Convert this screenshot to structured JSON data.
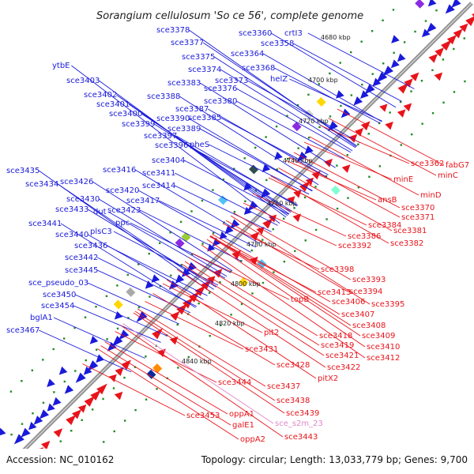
{
  "title": "Sorangium cellulosum 'So ce 56', complete genome",
  "accession": "Accession: NC_010162",
  "summary": "Topology: circular; Length: 13,033,779 bp; Genes: 9,700",
  "colors": {
    "forward": "#1a1adb",
    "reverse": "#e8141b",
    "pseudo": "#e087c9",
    "backbone": "#8c8c8c",
    "tick": "#228b22"
  },
  "kbp_ticks": [
    "4680 kbp",
    "4700 kbp",
    "4720 kbp",
    "4740 kbp",
    "4760 kbp",
    "4780 kbp",
    "4800 kbp",
    "4820 kbp",
    "4840 kbp"
  ],
  "forward_labels": [
    "crtI3",
    "sce3360",
    "sce3358",
    "sce3378",
    "sce3364",
    "sce3377",
    "sce3375",
    "sce3368",
    "sce3374",
    "helZ",
    "sce3373",
    "ytbE",
    "sce3383",
    "sce3376",
    "sce3403",
    "sce3380",
    "sce3388",
    "sce3402",
    "sce3401",
    "sce3387",
    "sce3385",
    "sce3400",
    "sce3390",
    "sce3399",
    "sce3389",
    "sce3397",
    "pheS",
    "sce3396",
    "sce3404",
    "sce3416",
    "sce3411",
    "sce3435",
    "sce3426",
    "sce3414",
    "sce3434",
    "sce3420",
    "sce3417",
    "sce3430",
    "dut",
    "sce3423",
    "sce3433",
    "ppc",
    "sce3441",
    "plsC3",
    "sce3440",
    "sce3436",
    "sce3442",
    "sce3445",
    "sce_pseudo_03",
    "sce3450",
    "sce3454",
    "bglA1",
    "sce3467"
  ],
  "reverse_labels": [
    "sce3362",
    "fabG7",
    "minC",
    "minE",
    "minD",
    "ansB",
    "sce3370",
    "sce3371",
    "sce3384",
    "sce3381",
    "sce3386",
    "sce3382",
    "sce3392",
    "sce3398",
    "sce3393",
    "sce3394",
    "sce3413",
    "topB",
    "sce3406",
    "sce3395",
    "sce3407",
    "sce3408",
    "sce3409",
    "sce3410",
    "sce3412",
    "pit2",
    "sce3418",
    "sce3419",
    "sce3421",
    "sce3431",
    "sce3428",
    "sce3422",
    "pitX2",
    "sce3444",
    "sce3437",
    "sce3438",
    "sce3453",
    "oppA1",
    "sce3439",
    "galE1",
    "sce3443",
    "oppA2"
  ],
  "pseudo_labels": [
    "sce_s2m_23"
  ]
}
